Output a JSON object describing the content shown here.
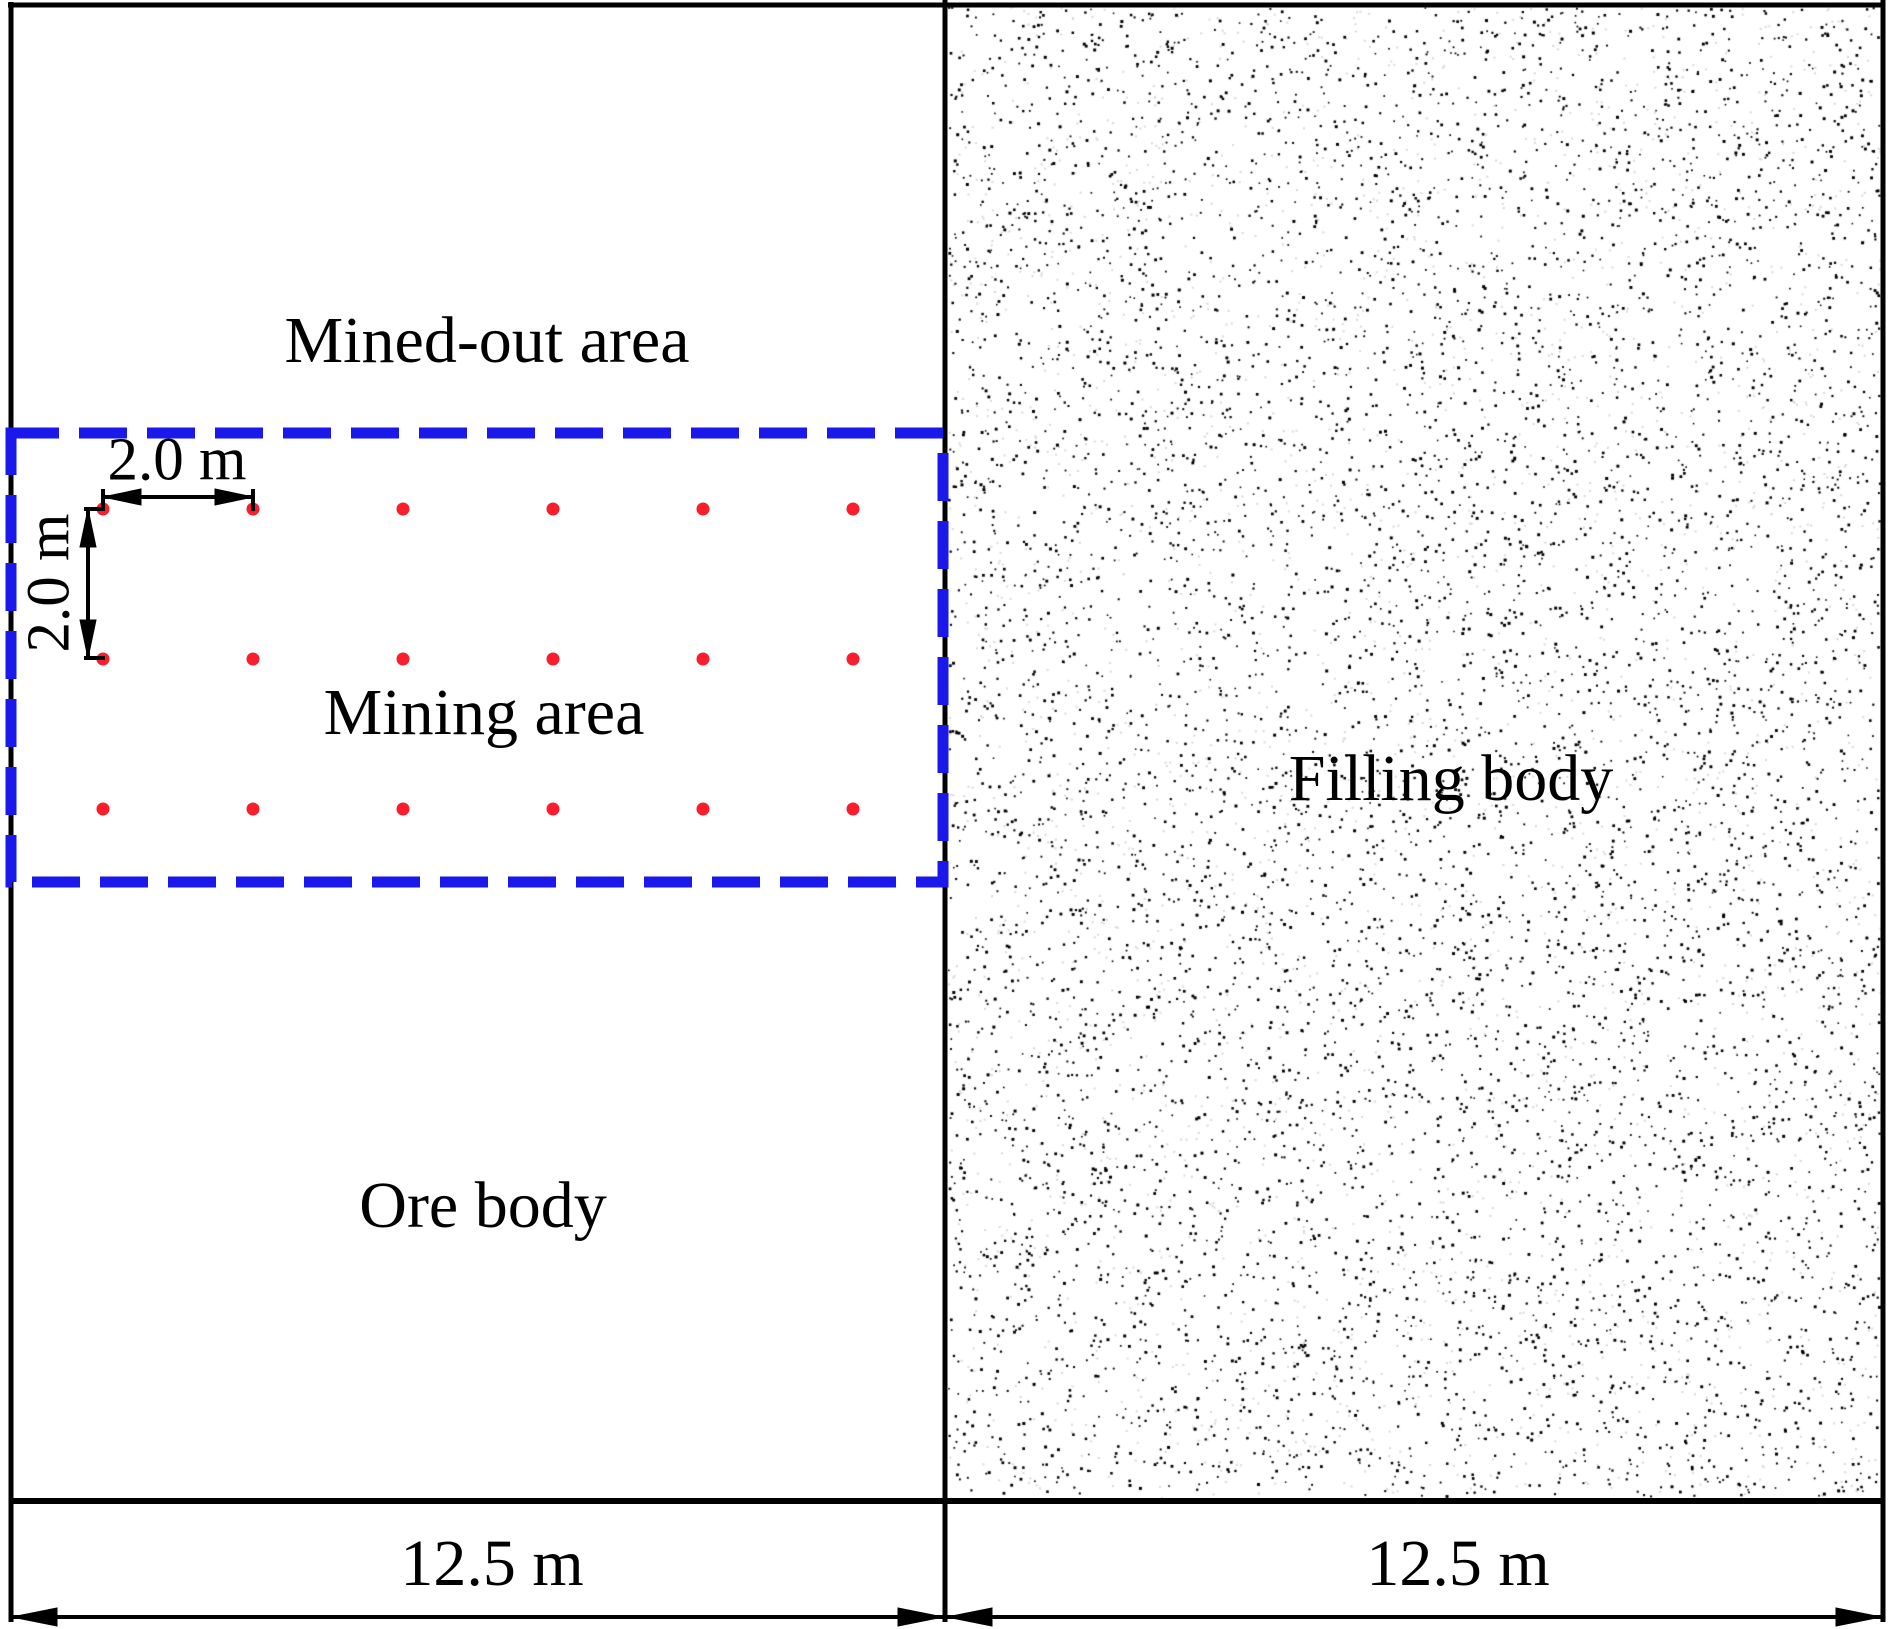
{
  "regions": {
    "mined_out_area": "Mined-out area",
    "mining_area": "Mining area",
    "ore_body": "Ore body",
    "filling_body": "Filling body"
  },
  "dimensions": {
    "hole_spacing_horizontal": "2.0 m",
    "hole_spacing_vertical": "2.0 m",
    "left_half_width": "12.5 m",
    "right_half_width": "12.5 m"
  },
  "blast_holes": {
    "rows": 3,
    "cols": 6,
    "color": "#fa1e2d"
  },
  "mining_area_outline": {
    "color": "#1a18ea",
    "style": "dashed"
  },
  "line_color": "#000000",
  "stipple": {
    "color": "#000000",
    "soft_color": "#d9d9d9",
    "dot_count": 7300,
    "soft_dot_count": 2600
  }
}
